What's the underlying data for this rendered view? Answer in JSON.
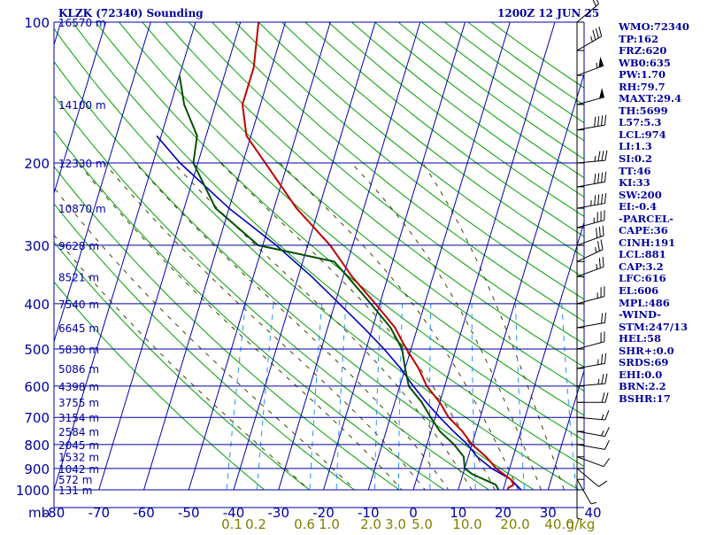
{
  "header": {
    "station_title": "KLZK (72340) Sounding",
    "time_title": "1200Z 12 JUN 25"
  },
  "colors": {
    "frame": "#0000a0",
    "isotherm": "#0000b0",
    "dry_adiabat": "#00a000",
    "moist_adiabat": "#404000",
    "mixing_ratio": "#2090ff",
    "temperature": "#c00000",
    "dewpoint": "#005000",
    "parcel": "#0000c0",
    "mixing_ratio_label": "#808000"
  },
  "chart_data": {
    "type": "skew-t",
    "pressure_axis": {
      "label": "mb",
      "ticks": [
        100,
        200,
        300,
        400,
        500,
        600,
        700,
        800,
        900,
        1000
      ],
      "scale": "log",
      "range": [
        1000,
        100
      ]
    },
    "temperature_axis": {
      "ticks": [
        -80,
        -70,
        -60,
        -50,
        -40,
        -30,
        -20,
        -10,
        0,
        10,
        20,
        30,
        40
      ],
      "range": [
        -80,
        40
      ],
      "unit_c": "C"
    },
    "mixing_ratio_labels": [
      "0.1",
      "0.2",
      "0.6",
      "1.0",
      "2.0",
      "3.0",
      "5.0",
      "10.0",
      "20.0",
      "40.0",
      "g/kg"
    ],
    "height_labels": [
      {
        "p": 100,
        "label": "16570 m"
      },
      {
        "p": 150,
        "label": "14100 m"
      },
      {
        "p": 200,
        "label": "12330 m"
      },
      {
        "p": 250,
        "label": "10870 m"
      },
      {
        "p": 300,
        "label": "9628 m"
      },
      {
        "p": 350,
        "label": "8521 m"
      },
      {
        "p": 400,
        "label": "7540 m"
      },
      {
        "p": 450,
        "label": "6645 m"
      },
      {
        "p": 500,
        "label": "5830 m"
      },
      {
        "p": 550,
        "label": "5086 m"
      },
      {
        "p": 600,
        "label": "4398 m"
      },
      {
        "p": 650,
        "label": "3755 m"
      },
      {
        "p": 700,
        "label": "3154 m"
      },
      {
        "p": 750,
        "label": "2584 m"
      },
      {
        "p": 800,
        "label": "2045 m"
      },
      {
        "p": 850,
        "label": "1532 m"
      },
      {
        "p": 900,
        "label": "1042 m"
      },
      {
        "p": 950,
        "label": "572 m"
      },
      {
        "p": 1000,
        "label": "131 m"
      }
    ],
    "temperature_profile": [
      {
        "p": 1000,
        "t": 21
      },
      {
        "p": 990,
        "t": 21
      },
      {
        "p": 975,
        "t": 22
      },
      {
        "p": 950,
        "t": 21
      },
      {
        "p": 925,
        "t": 19
      },
      {
        "p": 900,
        "t": 17
      },
      {
        "p": 850,
        "t": 14
      },
      {
        "p": 800,
        "t": 10
      },
      {
        "p": 750,
        "t": 7
      },
      {
        "p": 700,
        "t": 3
      },
      {
        "p": 650,
        "t": 0
      },
      {
        "p": 600,
        "t": -4
      },
      {
        "p": 550,
        "t": -7
      },
      {
        "p": 500,
        "t": -11
      },
      {
        "p": 475,
        "t": -13
      },
      {
        "p": 450,
        "t": -15
      },
      {
        "p": 400,
        "t": -21
      },
      {
        "p": 350,
        "t": -28
      },
      {
        "p": 300,
        "t": -35
      },
      {
        "p": 250,
        "t": -45
      },
      {
        "p": 200,
        "t": -55
      },
      {
        "p": 175,
        "t": -61
      },
      {
        "p": 150,
        "t": -64
      },
      {
        "p": 125,
        "t": -64
      },
      {
        "p": 100,
        "t": -66
      }
    ],
    "dewpoint_profile": [
      {
        "p": 1000,
        "t": 19
      },
      {
        "p": 975,
        "t": 18
      },
      {
        "p": 950,
        "t": 15
      },
      {
        "p": 925,
        "t": 12
      },
      {
        "p": 900,
        "t": 10
      },
      {
        "p": 850,
        "t": 9
      },
      {
        "p": 800,
        "t": 6
      },
      {
        "p": 750,
        "t": 2
      },
      {
        "p": 700,
        "t": -1
      },
      {
        "p": 650,
        "t": -4
      },
      {
        "p": 600,
        "t": -8
      },
      {
        "p": 550,
        "t": -10
      },
      {
        "p": 500,
        "t": -12
      },
      {
        "p": 450,
        "t": -16
      },
      {
        "p": 400,
        "t": -22
      },
      {
        "p": 350,
        "t": -29
      },
      {
        "p": 325,
        "t": -33
      },
      {
        "p": 300,
        "t": -51
      },
      {
        "p": 250,
        "t": -63
      },
      {
        "p": 200,
        "t": -71
      },
      {
        "p": 175,
        "t": -72
      },
      {
        "p": 150,
        "t": -77
      },
      {
        "p": 130,
        "t": -80
      }
    ],
    "parcel_profile": [
      {
        "p": 1000,
        "t": 24
      },
      {
        "p": 950,
        "t": 21
      },
      {
        "p": 900,
        "t": 16
      },
      {
        "p": 850,
        "t": 12
      },
      {
        "p": 800,
        "t": 9
      },
      {
        "p": 750,
        "t": 5
      },
      {
        "p": 700,
        "t": 1
      },
      {
        "p": 650,
        "t": -3
      },
      {
        "p": 600,
        "t": -7
      },
      {
        "p": 550,
        "t": -11
      },
      {
        "p": 500,
        "t": -16
      },
      {
        "p": 450,
        "t": -22
      },
      {
        "p": 400,
        "t": -29
      },
      {
        "p": 350,
        "t": -37
      },
      {
        "p": 300,
        "t": -47
      },
      {
        "p": 250,
        "t": -60
      },
      {
        "p": 200,
        "t": -74
      },
      {
        "p": 175,
        "t": -81
      }
    ],
    "wind_barbs": [
      {
        "p": 100,
        "dir": 310,
        "kt": 20
      },
      {
        "p": 115,
        "dir": 300,
        "kt": 35
      },
      {
        "p": 130,
        "dir": 290,
        "kt": 55
      },
      {
        "p": 150,
        "dir": 285,
        "kt": 50
      },
      {
        "p": 170,
        "dir": 280,
        "kt": 40
      },
      {
        "p": 200,
        "dir": 275,
        "kt": 35
      },
      {
        "p": 225,
        "dir": 280,
        "kt": 40
      },
      {
        "p": 250,
        "dir": 280,
        "kt": 45
      },
      {
        "p": 275,
        "dir": 285,
        "kt": 35
      },
      {
        "p": 300,
        "dir": 290,
        "kt": 30
      },
      {
        "p": 325,
        "dir": 295,
        "kt": 25
      },
      {
        "p": 350,
        "dir": 290,
        "kt": 25
      },
      {
        "p": 400,
        "dir": 285,
        "kt": 25
      },
      {
        "p": 450,
        "dir": 280,
        "kt": 20
      },
      {
        "p": 500,
        "dir": 285,
        "kt": 20
      },
      {
        "p": 550,
        "dir": 280,
        "kt": 25
      },
      {
        "p": 600,
        "dir": 275,
        "kt": 25
      },
      {
        "p": 650,
        "dir": 270,
        "kt": 20
      },
      {
        "p": 700,
        "dir": 265,
        "kt": 15
      },
      {
        "p": 750,
        "dir": 260,
        "kt": 15
      },
      {
        "p": 800,
        "dir": 260,
        "kt": 10
      },
      {
        "p": 850,
        "dir": 250,
        "kt": 10
      },
      {
        "p": 900,
        "dir": 230,
        "kt": 10
      },
      {
        "p": 950,
        "dir": 210,
        "kt": 5
      },
      {
        "p": 1000,
        "dir": 180,
        "kt": 5
      }
    ]
  },
  "indices": [
    "WMO:72340",
    "TP:162",
    "FRZ:620",
    "WB0:635",
    "PW:1.70",
    "RH:79.7",
    "MAXT:29.4",
    "TH:5699",
    "L57:5.3",
    "LCL:974",
    "LI:1.3",
    "SI:0.2",
    "TT:46",
    "KI:33",
    "SW:200",
    "EI:-0.4",
    "-PARCEL-",
    "CAPE:36",
    "CINH:191",
    "LCL:881",
    "CAP:3.2",
    "LFC:616",
    "EL:606",
    "MPL:486",
    "-WIND-",
    "STM:247/13",
    "HEL:58",
    "SHR+:0.0",
    "SRDS:69",
    "EHI:0.0",
    "BRN:2.2",
    "BSHR:17"
  ]
}
